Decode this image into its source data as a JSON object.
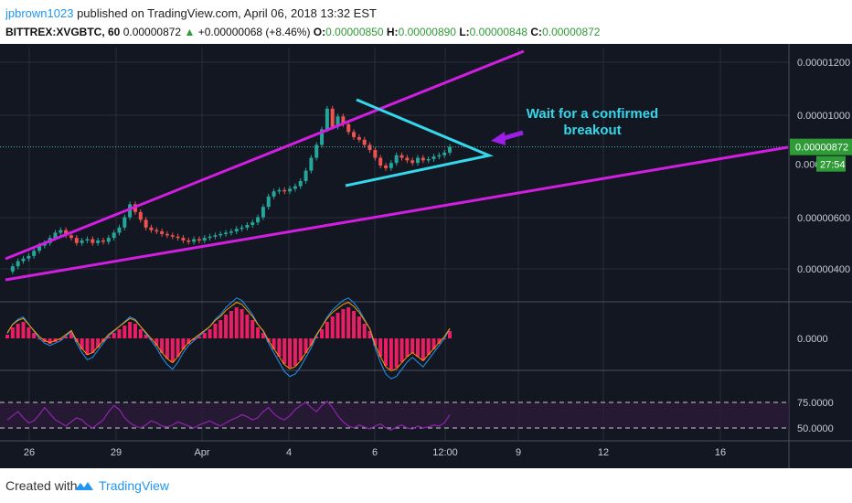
{
  "header": {
    "user": "jpbrown1023",
    "published_text": "published on TradingView.com, April 06, 2018 13:32 EST",
    "symbol": "BITTREX:XVGBTC, 60",
    "last": "0.00000872",
    "change_arrow": "▲",
    "change": "+0.00000068 (+8.46%)",
    "o_label": "O:",
    "o_value": "0.00000850",
    "h_label": "H:",
    "h_value": "0.00000890",
    "l_label": "L:",
    "l_value": "0.00000848",
    "c_label": "C:",
    "c_value": "0.00000872"
  },
  "annotation": {
    "line1": "Wait for a confirmed",
    "line2": "breakout"
  },
  "colors": {
    "background": "#131722",
    "grid": "#2a2e39",
    "trendline": "#d21ee0",
    "triangle": "#35d7ea",
    "arrow": "#9c1fe6",
    "annotation": "#35d7ea",
    "price_tag": "#2e9b36",
    "macd_hist": "#e91e63",
    "rsi": "#8e24aa"
  },
  "chart_data": [
    {
      "type": "line",
      "title": "Price (candles)",
      "y_ticks": [
        "0.00001200",
        "0.00001000",
        "0.00000600",
        "0.00000400"
      ],
      "current_price_label": "0.00000872",
      "partial_label": "0.000",
      "countdown_label": "27:54",
      "x_ticks": [
        "26",
        "29",
        "Apr",
        "4",
        "6",
        "12:00",
        "9",
        "12",
        "16"
      ],
      "ylim": [
        2.6e-06,
        1.24e-05
      ],
      "series": [
        {
          "values": [
            3.9e-06,
            4.1e-06,
            4.3e-06,
            4.4e-06,
            4.5e-06,
            4.7e-06,
            4.9e-06,
            5e-06,
            5.2e-06,
            5.4e-06,
            5.5e-06,
            5.3e-06,
            5.2e-06,
            5e-06,
            5.1e-06,
            5.15e-06,
            5e-06,
            5.1e-06,
            5.05e-06,
            5.2e-06,
            5.4e-06,
            5.6e-06,
            6e-06,
            6.5e-06,
            6.2e-06,
            5.9e-06,
            5.6e-06,
            5.5e-06,
            5.45e-06,
            5.35e-06,
            5.3e-06,
            5.25e-06,
            5.2e-06,
            5.1e-06,
            5.05e-06,
            5.15e-06,
            5.1e-06,
            5.2e-06,
            5.25e-06,
            5.3e-06,
            5.35e-06,
            5.4e-06,
            5.45e-06,
            5.55e-06,
            5.6e-06,
            5.7e-06,
            5.8e-06,
            6e-06,
            6.4e-06,
            6.8e-06,
            7e-06,
            7.05e-06,
            7e-06,
            7.1e-06,
            7.2e-06,
            7.4e-06,
            7.8e-06,
            8.3e-06,
            8.8e-06,
            9.4e-06,
            1.02e-05,
            9.5e-06,
            9.9e-06,
            9.6e-06,
            9.3e-06,
            9.1e-06,
            9e-06,
            8.8e-06,
            8.6e-06,
            8.3e-06,
            8e-06,
            7.9e-06,
            8.1e-06,
            8.4e-06,
            8.3e-06,
            8.2e-06,
            8.1e-06,
            8.3e-06,
            8.2e-06,
            8.25e-06,
            8.35e-06,
            8.4e-06,
            8.5e-06,
            8.72e-06
          ]
        }
      ]
    },
    {
      "type": "bar",
      "title": "MACD",
      "y_ticks": [
        "0.0000"
      ],
      "values": [
        2,
        6,
        8,
        9,
        6,
        3,
        0,
        -2,
        -3,
        -2,
        -1,
        1,
        3,
        -2,
        -6,
        -9,
        -8,
        -5,
        -2,
        1,
        3,
        5,
        7,
        9,
        8,
        5,
        2,
        -1,
        -4,
        -8,
        -11,
        -13,
        -10,
        -6,
        -3,
        -1,
        1,
        3,
        5,
        8,
        10,
        13,
        15,
        17,
        16,
        13,
        10,
        6,
        3,
        -2,
        -6,
        -10,
        -14,
        -16,
        -15,
        -12,
        -8,
        -4,
        1,
        5,
        9,
        12,
        14,
        16,
        17,
        15,
        12,
        8,
        4,
        -4,
        -10,
        -15,
        -17,
        -16,
        -13,
        -10,
        -8,
        -10,
        -12,
        -9,
        -6,
        -3,
        0,
        4
      ]
    },
    {
      "type": "line",
      "title": "RSI",
      "y_ticks": [
        "75.0000",
        "50.0000"
      ],
      "values": [
        58,
        62,
        66,
        60,
        55,
        57,
        63,
        70,
        64,
        58,
        55,
        52,
        56,
        60,
        58,
        53,
        50,
        54,
        58,
        66,
        72,
        68,
        60,
        55,
        52,
        50,
        53,
        57,
        55,
        52,
        51,
        53,
        56,
        54,
        52,
        50,
        53,
        55,
        57,
        54,
        52,
        55,
        58,
        60,
        63,
        61,
        58,
        60,
        66,
        70,
        64,
        60,
        58,
        62,
        68,
        72,
        75,
        70,
        66,
        72,
        76,
        70,
        62,
        56,
        52,
        50,
        53,
        51,
        49,
        52,
        54,
        50,
        48,
        51,
        53,
        50,
        49,
        52,
        50,
        51,
        53,
        52,
        55,
        63
      ]
    }
  ]
}
